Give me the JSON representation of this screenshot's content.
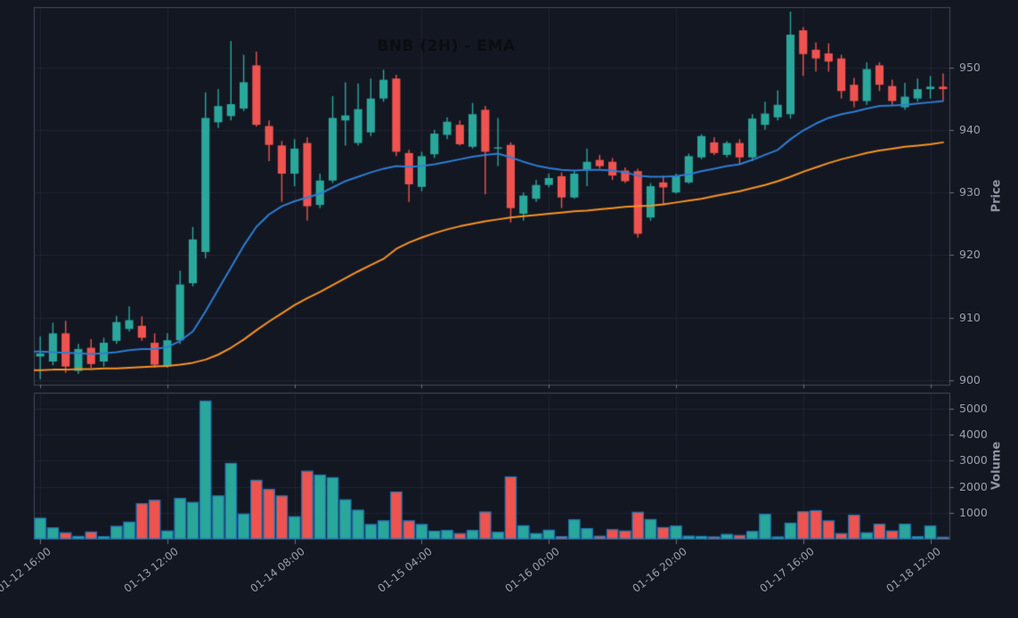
{
  "title": {
    "text": "BNB (2H) - EMA"
  },
  "colors": {
    "background": "#131722",
    "up": "#2aa79b",
    "down": "#ef5350",
    "ema_fast": "#2d7dd2",
    "ema_slow": "#f79321",
    "volume_bar_edge": "#1f77b4",
    "grid": "rgba(150,160,185,0.10)",
    "spine": "#454a58",
    "tick_mark": "#6a707e",
    "tick_label": "#9aa0ac",
    "title_text": "#0c0d10"
  },
  "chart_data": {
    "type": "candlestick",
    "title": "BNB (2H) - EMA",
    "symbol": "BNB",
    "timeframe": "2H",
    "overlay": "EMA",
    "grid": true,
    "x_axis": {
      "tick_labels": [
        "01-12 16:00",
        "01-13 12:00",
        "01-14 08:00",
        "01-15 04:00",
        "01-16 00:00",
        "01-16 20:00",
        "01-17 16:00",
        "01-18 12:00"
      ],
      "tick_indices": [
        0,
        10,
        20,
        30,
        40,
        50,
        60,
        70
      ]
    },
    "price_axis": {
      "label": "Price",
      "ticks": [
        900,
        910,
        920,
        930,
        940,
        950
      ],
      "min": 899.3,
      "max": 959.6
    },
    "volume_axis": {
      "label": "Volume",
      "ticks": [
        1000,
        2000,
        3000,
        4000,
        5000
      ],
      "min": 0,
      "max": 5620
    },
    "ohlcv": [
      [
        903.8,
        907.0,
        900.2,
        904.3,
        790
      ],
      [
        903.0,
        909.2,
        902.4,
        907.5,
        420
      ],
      [
        907.5,
        909.5,
        901.2,
        902.2,
        230
      ],
      [
        901.5,
        905.8,
        901.0,
        905.0,
        90
      ],
      [
        905.2,
        906.6,
        902.0,
        902.6,
        260
      ],
      [
        903.0,
        906.8,
        902.2,
        906.0,
        80
      ],
      [
        906.3,
        910.3,
        905.8,
        909.3,
        480
      ],
      [
        908.2,
        911.8,
        907.8,
        909.6,
        640
      ],
      [
        908.7,
        910.2,
        906.3,
        906.8,
        1350
      ],
      [
        906.0,
        907.5,
        902.0,
        902.5,
        1480
      ],
      [
        902.3,
        907.5,
        902.0,
        906.4,
        300
      ],
      [
        906.4,
        917.5,
        905.8,
        915.3,
        1550
      ],
      [
        915.5,
        924.5,
        915.0,
        922.5,
        1400
      ],
      [
        920.5,
        946.0,
        919.5,
        941.9,
        5300
      ],
      [
        941.2,
        946.5,
        940.3,
        943.8,
        1650
      ],
      [
        942.2,
        954.2,
        941.5,
        944.1,
        2900
      ],
      [
        943.4,
        952.0,
        943.0,
        947.6,
        950
      ],
      [
        950.3,
        952.5,
        940.5,
        940.8,
        2250
      ],
      [
        940.6,
        941.5,
        935.0,
        937.6,
        1900
      ],
      [
        937.5,
        938.2,
        928.5,
        933.0,
        1650
      ],
      [
        933.0,
        938.5,
        931.0,
        937.0,
        850
      ],
      [
        937.9,
        938.8,
        925.5,
        927.8,
        2600
      ],
      [
        928.0,
        933.0,
        927.5,
        931.9,
        2450
      ],
      [
        931.9,
        945.4,
        931.5,
        941.9,
        2350
      ],
      [
        941.5,
        947.6,
        937.5,
        942.3,
        1500
      ],
      [
        937.9,
        947.4,
        937.5,
        943.3,
        1100
      ],
      [
        939.6,
        948.2,
        939.0,
        945.0,
        550
      ],
      [
        945.0,
        949.6,
        944.5,
        948.0,
        690
      ],
      [
        948.2,
        948.8,
        935.8,
        936.5,
        1800
      ],
      [
        936.3,
        936.8,
        928.5,
        931.3,
        690
      ],
      [
        930.9,
        936.5,
        930.2,
        935.8,
        550
      ],
      [
        936.1,
        940.0,
        935.5,
        939.4,
        290
      ],
      [
        939.2,
        942.0,
        938.5,
        941.3,
        320
      ],
      [
        940.8,
        941.5,
        937.5,
        937.7,
        200
      ],
      [
        937.3,
        944.3,
        937.0,
        942.5,
        320
      ],
      [
        943.2,
        943.8,
        929.7,
        936.5,
        1030
      ],
      [
        937.0,
        941.9,
        934.2,
        937.2,
        250
      ],
      [
        937.6,
        938.0,
        925.2,
        927.5,
        2380
      ],
      [
        926.6,
        930.0,
        925.5,
        929.5,
        500
      ],
      [
        929.0,
        932.0,
        928.5,
        931.2,
        200
      ],
      [
        931.2,
        933.0,
        930.8,
        932.3,
        330
      ],
      [
        932.6,
        933.2,
        927.5,
        929.2,
        80
      ],
      [
        929.2,
        933.5,
        929.0,
        933.0,
        730
      ],
      [
        933.7,
        937.0,
        931.0,
        934.9,
        390
      ],
      [
        935.2,
        936.0,
        933.8,
        934.2,
        100
      ],
      [
        934.9,
        935.5,
        932.0,
        932.7,
        350
      ],
      [
        933.5,
        934.0,
        931.5,
        931.8,
        300
      ],
      [
        933.4,
        933.8,
        922.8,
        923.4,
        1020
      ],
      [
        926.0,
        931.5,
        925.5,
        931.0,
        740
      ],
      [
        931.6,
        932.7,
        928.0,
        930.8,
        430
      ],
      [
        930.0,
        933.0,
        929.8,
        932.6,
        490
      ],
      [
        931.6,
        936.2,
        931.4,
        935.8,
        100
      ],
      [
        935.6,
        939.3,
        935.3,
        939.0,
        90
      ],
      [
        938.0,
        938.8,
        936.0,
        936.3,
        70
      ],
      [
        936.0,
        938.2,
        935.6,
        937.9,
        170
      ],
      [
        937.9,
        938.5,
        934.5,
        935.6,
        130
      ],
      [
        935.6,
        942.5,
        935.0,
        941.8,
        280
      ],
      [
        940.8,
        944.5,
        940.0,
        942.6,
        940
      ],
      [
        942.0,
        946.3,
        941.5,
        944.0,
        70
      ],
      [
        942.5,
        958.9,
        941.8,
        955.2,
        600
      ],
      [
        955.9,
        956.4,
        948.6,
        952.1,
        1040
      ],
      [
        952.8,
        954.0,
        949.3,
        951.4,
        1080
      ],
      [
        952.2,
        953.8,
        949.3,
        950.9,
        690
      ],
      [
        951.4,
        952.0,
        945.0,
        946.2,
        200
      ],
      [
        947.2,
        948.3,
        943.6,
        944.6,
        910
      ],
      [
        944.6,
        950.8,
        944.0,
        949.7,
        230
      ],
      [
        950.3,
        950.8,
        946.2,
        947.2,
        560
      ],
      [
        947.0,
        948.0,
        944.0,
        944.6,
        300
      ],
      [
        943.6,
        947.5,
        943.2,
        945.3,
        560
      ],
      [
        945.0,
        948.2,
        944.5,
        946.5,
        80
      ],
      [
        946.5,
        948.6,
        945.0,
        946.9,
        490
      ],
      [
        946.9,
        949.0,
        944.7,
        946.5,
        60
      ]
    ],
    "ema_fast": [
      904.6,
      904.5,
      904.4,
      904.3,
      904.2,
      904.3,
      904.5,
      904.8,
      905.0,
      905.0,
      905.3,
      906.3,
      907.8,
      911.0,
      914.5,
      918.0,
      921.5,
      924.5,
      926.5,
      927.8,
      928.6,
      929.2,
      929.8,
      930.8,
      931.8,
      932.5,
      933.2,
      933.8,
      934.2,
      934.1,
      934.2,
      934.5,
      934.9,
      935.3,
      935.7,
      936.0,
      936.2,
      935.6,
      934.9,
      934.3,
      933.9,
      933.6,
      933.5,
      933.6,
      933.6,
      933.5,
      933.2,
      932.7,
      932.5,
      932.5,
      932.6,
      932.9,
      933.4,
      933.8,
      934.2,
      934.5,
      935.2,
      936.0,
      936.8,
      938.5,
      939.9,
      941.0,
      941.9,
      942.5,
      942.9,
      943.4,
      943.8,
      943.9,
      944.0,
      944.2,
      944.4,
      944.6
    ],
    "ema_slow": [
      901.6,
      901.7,
      901.7,
      901.8,
      901.8,
      901.9,
      901.9,
      902.0,
      902.1,
      902.2,
      902.3,
      902.5,
      902.8,
      903.3,
      904.1,
      905.2,
      906.5,
      908.0,
      909.4,
      910.7,
      912.0,
      913.1,
      914.1,
      915.2,
      916.3,
      917.4,
      918.4,
      919.4,
      921.0,
      922.0,
      922.8,
      923.5,
      924.1,
      924.6,
      925.0,
      925.4,
      925.7,
      926.0,
      926.2,
      926.4,
      926.6,
      926.8,
      927.0,
      927.1,
      927.3,
      927.5,
      927.7,
      927.8,
      927.9,
      928.1,
      928.4,
      928.7,
      929.0,
      929.4,
      929.8,
      930.2,
      930.7,
      931.2,
      931.8,
      932.5,
      933.3,
      934.0,
      934.7,
      935.3,
      935.8,
      936.3,
      936.7,
      937.0,
      937.3,
      937.5,
      937.7,
      938.0
    ]
  }
}
